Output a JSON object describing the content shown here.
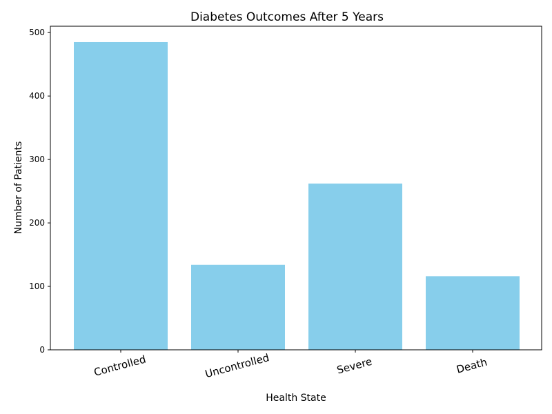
{
  "chart_data": {
    "type": "bar",
    "title": "Diabetes Outcomes After 5 Years",
    "xlabel": "Health State",
    "ylabel": "Number of Patients",
    "categories": [
      "Controlled",
      "Uncontrolled",
      "Severe",
      "Death"
    ],
    "values": [
      485,
      134,
      262,
      116
    ],
    "ylim": [
      0,
      510
    ],
    "yticks": [
      0,
      100,
      200,
      300,
      400,
      500
    ],
    "bar_color": "#87CEEB",
    "grid": false
  }
}
